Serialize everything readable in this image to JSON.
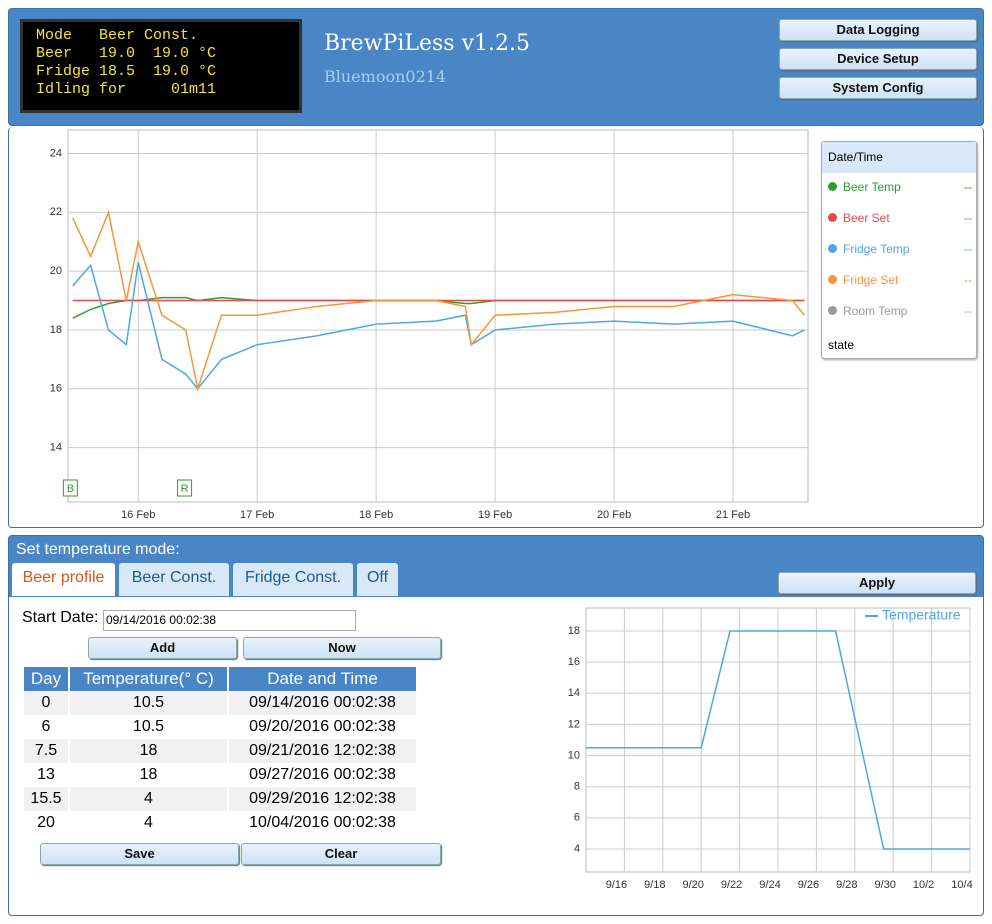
{
  "header": {
    "lcd": [
      "Mode   Beer Const.",
      "Beer   19.0  19.0 °C",
      "Fridge 18.5  19.0 °C",
      "Idling for     01m11"
    ],
    "title": "BrewPiLess v1.2.5",
    "subtitle": "Bluemoon0214",
    "buttons": [
      "Data Logging",
      "Device Setup",
      "System Config"
    ]
  },
  "chart_data": [
    {
      "type": "line",
      "x": [
        15.45,
        15.6,
        15.75,
        15.9,
        16.0,
        16.2,
        16.4,
        16.5,
        16.7,
        17.0,
        17.5,
        18.0,
        18.5,
        18.75,
        18.8,
        19.0,
        19.5,
        20.0,
        20.5,
        21.0,
        21.5,
        21.6
      ],
      "xlim": [
        15.41,
        21.63
      ],
      "xticks": [
        {
          "value": 16,
          "label": "16 Feb"
        },
        {
          "value": 17,
          "label": "17 Feb"
        },
        {
          "value": 18,
          "label": "18 Feb"
        },
        {
          "value": 19,
          "label": "19 Feb"
        },
        {
          "value": 20,
          "label": "20 Feb"
        },
        {
          "value": 21,
          "label": "21 Feb"
        }
      ],
      "ylim": [
        12.15,
        24.8
      ],
      "yticks": [
        14,
        16,
        18,
        20,
        22,
        24
      ],
      "grid": true,
      "legend_header": "Date/Time",
      "series": [
        {
          "name": "Beer Temp",
          "color": "#2e9e2e",
          "legend_value": "--",
          "values": [
            18.4,
            18.7,
            18.9,
            19.0,
            19.0,
            19.1,
            19.1,
            19.0,
            19.1,
            19.0,
            19.0,
            19.0,
            19.0,
            18.9,
            18.9,
            19.0,
            19.0,
            19.0,
            19.0,
            19.0,
            19.0,
            19.0
          ]
        },
        {
          "name": "Beer Set",
          "color": "#e84848",
          "legend_value": "--",
          "values": [
            19,
            19,
            19,
            19,
            19,
            19,
            19,
            19,
            19,
            19,
            19,
            19,
            19,
            19,
            19,
            19,
            19,
            19,
            19,
            19,
            19,
            19
          ]
        },
        {
          "name": "Fridge Temp",
          "color": "#4ea6e6",
          "legend_value": "--",
          "values": [
            19.5,
            20.2,
            18,
            17.5,
            20.3,
            17,
            16.5,
            16,
            17,
            17.5,
            17.8,
            18.2,
            18.3,
            18.5,
            17.5,
            18,
            18.2,
            18.3,
            18.2,
            18.3,
            17.8,
            18
          ]
        },
        {
          "name": "Fridge Set",
          "color": "#f5963a",
          "legend_value": "--",
          "values": [
            21.8,
            20.5,
            22,
            19,
            21,
            18.5,
            18,
            16,
            18.5,
            18.5,
            18.8,
            19,
            19,
            18.8,
            17.5,
            18.5,
            18.6,
            18.8,
            18.8,
            19.2,
            19,
            18.5
          ]
        },
        {
          "name": "Room Temp",
          "color": "#9a9a9a",
          "legend_value": "--",
          "values": [
            null,
            null,
            null,
            null,
            null,
            null,
            null,
            null,
            null,
            null,
            null,
            null,
            null,
            null,
            null,
            null,
            null,
            null,
            null,
            null,
            null,
            null
          ]
        }
      ],
      "state_label": "state",
      "markers": [
        {
          "label": "B",
          "x": 15.43
        },
        {
          "label": "R",
          "x": 16.39
        }
      ]
    },
    {
      "type": "line",
      "x": [
        0,
        6,
        7.5,
        13,
        15.5,
        20
      ],
      "xlim": [
        0,
        20
      ],
      "xticks": [
        {
          "value": 2,
          "label": "9/16"
        },
        {
          "value": 4,
          "label": "9/18"
        },
        {
          "value": 6,
          "label": "9/20"
        },
        {
          "value": 8,
          "label": "9/22"
        },
        {
          "value": 10,
          "label": "9/24"
        },
        {
          "value": 12,
          "label": "9/26"
        },
        {
          "value": 14,
          "label": "9/28"
        },
        {
          "value": 16,
          "label": "9/30"
        },
        {
          "value": 18,
          "label": "10/2"
        },
        {
          "value": 20,
          "label": "10/4"
        }
      ],
      "ylim": [
        2.52,
        19.48
      ],
      "yticks": [
        4,
        6,
        8,
        10,
        12,
        14,
        16,
        18
      ],
      "grid": true,
      "series": [
        {
          "name": "Temperature",
          "color": "#4ea6e6",
          "values": [
            10.5,
            10.5,
            18,
            18,
            4,
            4
          ]
        }
      ]
    }
  ],
  "mode_panel": {
    "title": "Set temperature mode:",
    "tabs": [
      "Beer profile",
      "Beer Const.",
      "Fridge Const.",
      "Off"
    ],
    "apply": "Apply",
    "start_label": "Start Date:",
    "start_value": "09/14/2016 00:02:38",
    "buttons_top": [
      "Add",
      "Now"
    ],
    "buttons_bottom": [
      "Save",
      "Clear"
    ]
  },
  "table": {
    "headers": [
      "Day",
      "Temperature(°  C)",
      "Date and Time"
    ],
    "rows": [
      [
        "0",
        "10.5",
        "09/14/2016 00:02:38"
      ],
      [
        "6",
        "10.5",
        "09/20/2016 00:02:38"
      ],
      [
        "7.5",
        "18",
        "09/21/2016 12:02:38"
      ],
      [
        "13",
        "18",
        "09/27/2016 00:02:38"
      ],
      [
        "15.5",
        "4",
        "09/29/2016 12:02:38"
      ],
      [
        "20",
        "4",
        "10/04/2016 00:02:38"
      ]
    ]
  }
}
